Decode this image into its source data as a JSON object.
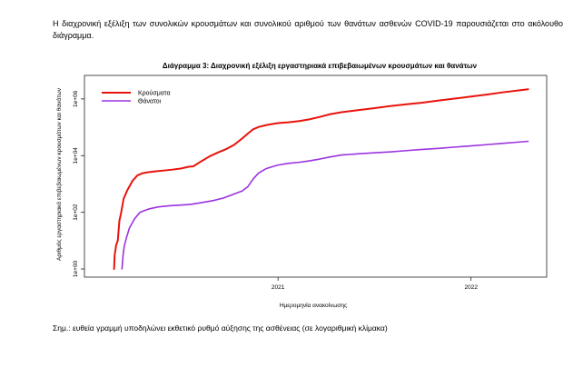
{
  "document": {
    "intro_text": "Η διαχρονική εξέλιξη των συνολικών κρουσμάτων και συνολικού αριθμού των θανάτων ασθενών COVID-19 παρουσιάζεται στο ακόλουθο διάγραμμα.",
    "note_text": "Σημ.: ευθεία γραμμή υποδηλώνει εκθετικό ρυθμό αύξησης της ασθένειας (σε λογαριθμική κλίμακα)"
  },
  "chart_data": {
    "type": "line",
    "title": "Διάγραμμα 3: Διαχρονική εξέλιξη εργαστηριακά επιβεβαιωμένων κρουσμάτων και θανάτων",
    "xlabel": "Ημερομηνία ανακοίνωσης",
    "ylabel": "Αριθμός εργαστηριακά επιβεβαιωμένων κρουσμάτων και θανάτων",
    "y_scale": "log",
    "ylim": [
      1,
      3000000
    ],
    "xlim": [
      "2020-01-25",
      "2022-04-30"
    ],
    "x_ticks": [
      {
        "value": "2021-01-01",
        "label": "2021"
      },
      {
        "value": "2022-01-01",
        "label": "2022"
      }
    ],
    "y_ticks": [
      {
        "value": 1,
        "label": "1e+00"
      },
      {
        "value": 100,
        "label": "1e+02"
      },
      {
        "value": 10000,
        "label": "1e+04"
      },
      {
        "value": 1000000,
        "label": "1e+06"
      }
    ],
    "grid": false,
    "legend_position": "top-left",
    "series": [
      {
        "name": "Κρούσματα",
        "color": "#e8140c",
        "points": [
          [
            "2020-02-26",
            1
          ],
          [
            "2020-02-27",
            3
          ],
          [
            "2020-03-01",
            7
          ],
          [
            "2020-03-04",
            10
          ],
          [
            "2020-03-07",
            50
          ],
          [
            "2020-03-10",
            90
          ],
          [
            "2020-03-15",
            300
          ],
          [
            "2020-03-22",
            600
          ],
          [
            "2020-04-01",
            1300
          ],
          [
            "2020-04-10",
            2000
          ],
          [
            "2020-04-20",
            2400
          ],
          [
            "2020-05-01",
            2600
          ],
          [
            "2020-05-15",
            2800
          ],
          [
            "2020-06-01",
            3000
          ],
          [
            "2020-06-15",
            3200
          ],
          [
            "2020-07-01",
            3500
          ],
          [
            "2020-07-15",
            4000
          ],
          [
            "2020-07-25",
            4200
          ],
          [
            "2020-08-10",
            6500
          ],
          [
            "2020-08-25",
            9500
          ],
          [
            "2020-09-10",
            13000
          ],
          [
            "2020-09-25",
            17000
          ],
          [
            "2020-10-10",
            24000
          ],
          [
            "2020-10-25",
            40000
          ],
          [
            "2020-11-05",
            60000
          ],
          [
            "2020-11-15",
            85000
          ],
          [
            "2020-11-25",
            102000
          ],
          [
            "2020-12-10",
            120000
          ],
          [
            "2020-12-31",
            140000
          ],
          [
            "2021-01-20",
            150000
          ],
          [
            "2021-02-10",
            165000
          ],
          [
            "2021-03-01",
            190000
          ],
          [
            "2021-03-20",
            230000
          ],
          [
            "2021-04-10",
            290000
          ],
          [
            "2021-05-01",
            340000
          ],
          [
            "2021-06-01",
            400000
          ],
          [
            "2021-07-01",
            470000
          ],
          [
            "2021-08-01",
            560000
          ],
          [
            "2021-09-01",
            650000
          ],
          [
            "2021-10-01",
            740000
          ],
          [
            "2021-11-01",
            880000
          ],
          [
            "2021-12-01",
            1030000
          ],
          [
            "2022-01-01",
            1210000
          ],
          [
            "2022-02-01",
            1430000
          ],
          [
            "2022-03-01",
            1700000
          ],
          [
            "2022-04-01",
            2000000
          ],
          [
            "2022-04-19",
            2200000
          ]
        ]
      },
      {
        "name": "Θάνατοι",
        "color": "#9b33e0",
        "points": [
          [
            "2020-03-12",
            1
          ],
          [
            "2020-03-14",
            3
          ],
          [
            "2020-03-16",
            6
          ],
          [
            "2020-03-20",
            12
          ],
          [
            "2020-03-26",
            28
          ],
          [
            "2020-04-05",
            60
          ],
          [
            "2020-04-15",
            100
          ],
          [
            "2020-05-01",
            130
          ],
          [
            "2020-05-20",
            155
          ],
          [
            "2020-06-10",
            170
          ],
          [
            "2020-07-01",
            180
          ],
          [
            "2020-07-20",
            190
          ],
          [
            "2020-08-10",
            220
          ],
          [
            "2020-09-01",
            260
          ],
          [
            "2020-09-20",
            320
          ],
          [
            "2020-10-10",
            440
          ],
          [
            "2020-10-25",
            560
          ],
          [
            "2020-11-05",
            800
          ],
          [
            "2020-11-15",
            1500
          ],
          [
            "2020-11-25",
            2400
          ],
          [
            "2020-12-10",
            3500
          ],
          [
            "2020-12-31",
            4600
          ],
          [
            "2021-01-20",
            5300
          ],
          [
            "2021-02-10",
            5800
          ],
          [
            "2021-03-01",
            6500
          ],
          [
            "2021-03-20",
            7500
          ],
          [
            "2021-04-10",
            9000
          ],
          [
            "2021-05-01",
            10500
          ],
          [
            "2021-06-01",
            11500
          ],
          [
            "2021-07-01",
            12500
          ],
          [
            "2021-08-01",
            13500
          ],
          [
            "2021-09-01",
            15000
          ],
          [
            "2021-10-01",
            16500
          ],
          [
            "2021-11-01",
            18000
          ],
          [
            "2021-12-01",
            20000
          ],
          [
            "2022-01-01",
            22000
          ],
          [
            "2022-02-01",
            24500
          ],
          [
            "2022-03-01",
            27000
          ],
          [
            "2022-04-01",
            30000
          ],
          [
            "2022-04-19",
            32000
          ]
        ]
      }
    ]
  }
}
